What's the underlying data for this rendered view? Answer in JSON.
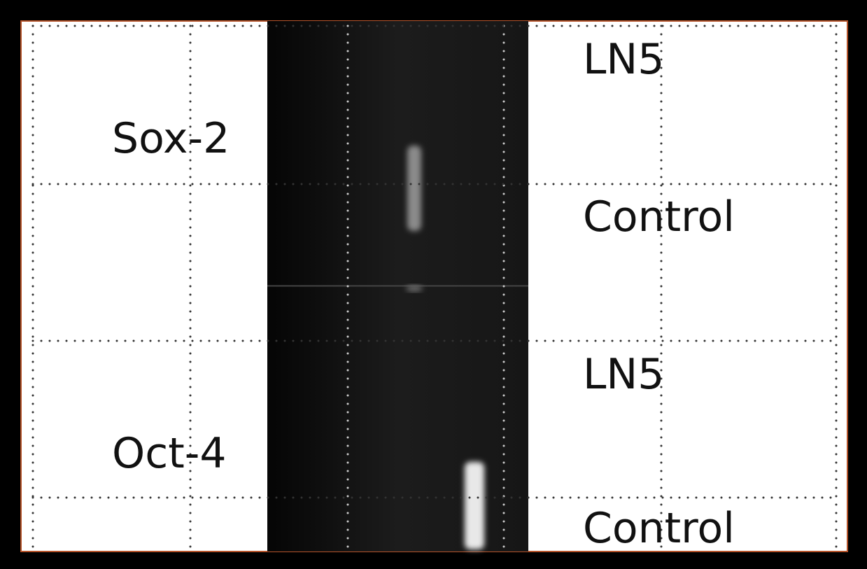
{
  "genes": [
    {
      "label": "Sox-2"
    },
    {
      "label": "Oct-4"
    }
  ],
  "lanes": [
    {
      "label": "LN5"
    },
    {
      "label": "Control"
    },
    {
      "label": "LN5"
    },
    {
      "label": "Control"
    }
  ]
}
